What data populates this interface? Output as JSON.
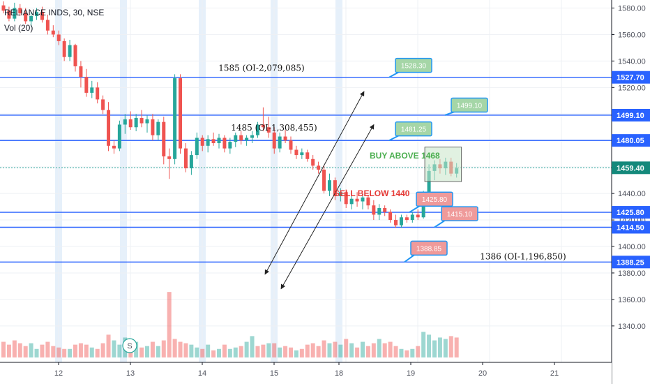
{
  "header": {
    "symbol_line": "RELIANCE INDS, 30, NSE",
    "volume_label": "Vol (20)"
  },
  "colors": {
    "up": "#26a69a",
    "down": "#ef5350",
    "level_line": "#2962ff",
    "current_badge": "#14897b",
    "session_band": "#dbeaf8",
    "callout_green_fill": "#a5d6a7",
    "callout_red_fill": "#ef9a9a",
    "callout_border": "#2196f3"
  },
  "chart_data": {
    "type": "candlestick",
    "x_tick_labels": [
      "12",
      "13",
      "14",
      "15",
      "18",
      "19",
      "20",
      "21"
    ],
    "y_tick_labels": [
      "1340.00",
      "1360.00",
      "1380.00",
      "1400.00",
      "1420.00",
      "1440.00",
      "1460.00",
      "1480.00",
      "1500.00",
      "1520.00",
      "1540.00",
      "1560.00",
      "1580.00"
    ],
    "y_ticks": [
      1340,
      1360,
      1380,
      1400,
      1420,
      1440,
      1460,
      1480,
      1500,
      1520,
      1540,
      1560,
      1580
    ],
    "ylim": [
      1322,
      1585
    ],
    "grid": true,
    "x_scale": {
      "tick_days": [
        12,
        13,
        14,
        15,
        18,
        19,
        20,
        21
      ],
      "bars_per_day": 13
    },
    "candles": [
      {
        "o": 1582,
        "h": 1585,
        "l": 1576,
        "c": 1578
      },
      {
        "o": 1578,
        "h": 1581,
        "l": 1570,
        "c": 1572
      },
      {
        "o": 1572,
        "h": 1584,
        "l": 1570,
        "c": 1580
      },
      {
        "o": 1580,
        "h": 1583,
        "l": 1574,
        "c": 1576
      },
      {
        "o": 1576,
        "h": 1580,
        "l": 1568,
        "c": 1570
      },
      {
        "o": 1570,
        "h": 1577,
        "l": 1566,
        "c": 1574
      },
      {
        "o": 1574,
        "h": 1580,
        "l": 1571,
        "c": 1577
      },
      {
        "o": 1577,
        "h": 1581,
        "l": 1569,
        "c": 1571
      },
      {
        "o": 1571,
        "h": 1575,
        "l": 1560,
        "c": 1563
      },
      {
        "o": 1563,
        "h": 1567,
        "l": 1558,
        "c": 1560
      },
      {
        "o": 1560,
        "h": 1563,
        "l": 1552,
        "c": 1555
      },
      {
        "o": 1555,
        "h": 1557,
        "l": 1540,
        "c": 1543
      },
      {
        "o": 1543,
        "h": 1556,
        "l": 1540,
        "c": 1552
      },
      {
        "o": 1552,
        "h": 1553,
        "l": 1532,
        "c": 1536
      },
      {
        "o": 1536,
        "h": 1540,
        "l": 1520,
        "c": 1528
      },
      {
        "o": 1528,
        "h": 1534,
        "l": 1513,
        "c": 1516
      },
      {
        "o": 1516,
        "h": 1525,
        "l": 1512,
        "c": 1520
      },
      {
        "o": 1520,
        "h": 1524,
        "l": 1508,
        "c": 1511
      },
      {
        "o": 1511,
        "h": 1514,
        "l": 1500,
        "c": 1503
      },
      {
        "o": 1503,
        "h": 1509,
        "l": 1472,
        "c": 1476
      },
      {
        "o": 1476,
        "h": 1480,
        "l": 1470,
        "c": 1474
      },
      {
        "o": 1474,
        "h": 1495,
        "l": 1472,
        "c": 1492
      },
      {
        "o": 1492,
        "h": 1500,
        "l": 1485,
        "c": 1496
      },
      {
        "o": 1496,
        "h": 1502,
        "l": 1488,
        "c": 1490
      },
      {
        "o": 1490,
        "h": 1500,
        "l": 1487,
        "c": 1497
      },
      {
        "o": 1497,
        "h": 1503,
        "l": 1490,
        "c": 1493
      },
      {
        "o": 1493,
        "h": 1499,
        "l": 1486,
        "c": 1496
      },
      {
        "o": 1496,
        "h": 1500,
        "l": 1480,
        "c": 1484
      },
      {
        "o": 1484,
        "h": 1496,
        "l": 1480,
        "c": 1494
      },
      {
        "o": 1494,
        "h": 1498,
        "l": 1462,
        "c": 1468
      },
      {
        "o": 1468,
        "h": 1474,
        "l": 1451,
        "c": 1466
      },
      {
        "o": 1466,
        "h": 1530,
        "l": 1462,
        "c": 1527
      },
      {
        "o": 1527,
        "h": 1530,
        "l": 1470,
        "c": 1474
      },
      {
        "o": 1474,
        "h": 1478,
        "l": 1456,
        "c": 1459
      },
      {
        "o": 1459,
        "h": 1472,
        "l": 1454,
        "c": 1469
      },
      {
        "o": 1469,
        "h": 1486,
        "l": 1466,
        "c": 1482
      },
      {
        "o": 1482,
        "h": 1484,
        "l": 1472,
        "c": 1476
      },
      {
        "o": 1476,
        "h": 1484,
        "l": 1471,
        "c": 1481
      },
      {
        "o": 1481,
        "h": 1486,
        "l": 1476,
        "c": 1478
      },
      {
        "o": 1478,
        "h": 1485,
        "l": 1474,
        "c": 1482
      },
      {
        "o": 1482,
        "h": 1484,
        "l": 1471,
        "c": 1474
      },
      {
        "o": 1474,
        "h": 1482,
        "l": 1470,
        "c": 1479
      },
      {
        "o": 1479,
        "h": 1486,
        "l": 1475,
        "c": 1484
      },
      {
        "o": 1484,
        "h": 1487,
        "l": 1477,
        "c": 1480
      },
      {
        "o": 1480,
        "h": 1484,
        "l": 1476,
        "c": 1482
      },
      {
        "o": 1482,
        "h": 1487,
        "l": 1478,
        "c": 1484
      },
      {
        "o": 1484,
        "h": 1494,
        "l": 1482,
        "c": 1492
      },
      {
        "o": 1492,
        "h": 1505,
        "l": 1487,
        "c": 1490
      },
      {
        "o": 1490,
        "h": 1498,
        "l": 1482,
        "c": 1486
      },
      {
        "o": 1486,
        "h": 1490,
        "l": 1470,
        "c": 1474
      },
      {
        "o": 1474,
        "h": 1486,
        "l": 1471,
        "c": 1483
      },
      {
        "o": 1483,
        "h": 1488,
        "l": 1478,
        "c": 1480
      },
      {
        "o": 1480,
        "h": 1483,
        "l": 1470,
        "c": 1473
      },
      {
        "o": 1473,
        "h": 1476,
        "l": 1466,
        "c": 1469
      },
      {
        "o": 1469,
        "h": 1474,
        "l": 1466,
        "c": 1471
      },
      {
        "o": 1471,
        "h": 1473,
        "l": 1464,
        "c": 1466
      },
      {
        "o": 1466,
        "h": 1469,
        "l": 1458,
        "c": 1461
      },
      {
        "o": 1461,
        "h": 1464,
        "l": 1455,
        "c": 1458
      },
      {
        "o": 1458,
        "h": 1461,
        "l": 1440,
        "c": 1442
      },
      {
        "o": 1442,
        "h": 1455,
        "l": 1438,
        "c": 1450
      },
      {
        "o": 1450,
        "h": 1452,
        "l": 1435,
        "c": 1438
      },
      {
        "o": 1438,
        "h": 1444,
        "l": 1434,
        "c": 1441
      },
      {
        "o": 1441,
        "h": 1443,
        "l": 1429,
        "c": 1432
      },
      {
        "o": 1432,
        "h": 1438,
        "l": 1428,
        "c": 1436
      },
      {
        "o": 1436,
        "h": 1441,
        "l": 1430,
        "c": 1434
      },
      {
        "o": 1434,
        "h": 1440,
        "l": 1428,
        "c": 1437
      },
      {
        "o": 1437,
        "h": 1439,
        "l": 1428,
        "c": 1431
      },
      {
        "o": 1431,
        "h": 1435,
        "l": 1420,
        "c": 1424
      },
      {
        "o": 1424,
        "h": 1432,
        "l": 1420,
        "c": 1429
      },
      {
        "o": 1429,
        "h": 1431,
        "l": 1423,
        "c": 1426
      },
      {
        "o": 1426,
        "h": 1428,
        "l": 1418,
        "c": 1420
      },
      {
        "o": 1420,
        "h": 1424,
        "l": 1414,
        "c": 1416
      },
      {
        "o": 1416,
        "h": 1424,
        "l": 1414,
        "c": 1422
      },
      {
        "o": 1422,
        "h": 1424,
        "l": 1418,
        "c": 1420
      },
      {
        "o": 1420,
        "h": 1426,
        "l": 1418,
        "c": 1424
      },
      {
        "o": 1424,
        "h": 1428,
        "l": 1420,
        "c": 1422
      },
      {
        "o": 1422,
        "h": 1442,
        "l": 1421,
        "c": 1440
      },
      {
        "o": 1440,
        "h": 1462,
        "l": 1438,
        "c": 1457
      },
      {
        "o": 1457,
        "h": 1465,
        "l": 1450,
        "c": 1462
      },
      {
        "o": 1462,
        "h": 1466,
        "l": 1455,
        "c": 1459
      },
      {
        "o": 1459,
        "h": 1467,
        "l": 1454,
        "c": 1464
      },
      {
        "o": 1464,
        "h": 1467,
        "l": 1453,
        "c": 1455
      },
      {
        "o": 1455,
        "h": 1463,
        "l": 1452,
        "c": 1459
      }
    ],
    "volumes": [
      {
        "v": 22,
        "up": false
      },
      {
        "v": 18,
        "up": false
      },
      {
        "v": 24,
        "up": false
      },
      {
        "v": 20,
        "up": false
      },
      {
        "v": 16,
        "up": false
      },
      {
        "v": 20,
        "up": true
      },
      {
        "v": 12,
        "up": true
      },
      {
        "v": 18,
        "up": false
      },
      {
        "v": 22,
        "up": false
      },
      {
        "v": 16,
        "up": false
      },
      {
        "v": 14,
        "up": false
      },
      {
        "v": 12,
        "up": false
      },
      {
        "v": 12,
        "up": true
      },
      {
        "v": 18,
        "up": false
      },
      {
        "v": 20,
        "up": false
      },
      {
        "v": 18,
        "up": false
      },
      {
        "v": 14,
        "up": true
      },
      {
        "v": 12,
        "up": false
      },
      {
        "v": 20,
        "up": false
      },
      {
        "v": 32,
        "up": false
      },
      {
        "v": 24,
        "up": true
      },
      {
        "v": 18,
        "up": true
      },
      {
        "v": 28,
        "up": true
      },
      {
        "v": 20,
        "up": false
      },
      {
        "v": 22,
        "up": true
      },
      {
        "v": 14,
        "up": false
      },
      {
        "v": 16,
        "up": true
      },
      {
        "v": 22,
        "up": false
      },
      {
        "v": 16,
        "up": true
      },
      {
        "v": 24,
        "up": false
      },
      {
        "v": 92,
        "up": false
      },
      {
        "v": 26,
        "up": false
      },
      {
        "v": 22,
        "up": false
      },
      {
        "v": 20,
        "up": false
      },
      {
        "v": 18,
        "up": true
      },
      {
        "v": 14,
        "up": true
      },
      {
        "v": 12,
        "up": false
      },
      {
        "v": 18,
        "up": true
      },
      {
        "v": 10,
        "up": false
      },
      {
        "v": 12,
        "up": true
      },
      {
        "v": 18,
        "up": false
      },
      {
        "v": 12,
        "up": true
      },
      {
        "v": 14,
        "up": true
      },
      {
        "v": 16,
        "up": false
      },
      {
        "v": 22,
        "up": true
      },
      {
        "v": 30,
        "up": true
      },
      {
        "v": 16,
        "up": false
      },
      {
        "v": 18,
        "up": false
      },
      {
        "v": 20,
        "up": true
      },
      {
        "v": 20,
        "up": false
      },
      {
        "v": 14,
        "up": true
      },
      {
        "v": 16,
        "up": false
      },
      {
        "v": 14,
        "up": false
      },
      {
        "v": 10,
        "up": true
      },
      {
        "v": 12,
        "up": false
      },
      {
        "v": 18,
        "up": false
      },
      {
        "v": 20,
        "up": false
      },
      {
        "v": 16,
        "up": false
      },
      {
        "v": 24,
        "up": false
      },
      {
        "v": 20,
        "up": true
      },
      {
        "v": 22,
        "up": false
      },
      {
        "v": 18,
        "up": true
      },
      {
        "v": 26,
        "up": false
      },
      {
        "v": 20,
        "up": true
      },
      {
        "v": 14,
        "up": false
      },
      {
        "v": 22,
        "up": true
      },
      {
        "v": 16,
        "up": false
      },
      {
        "v": 20,
        "up": false
      },
      {
        "v": 26,
        "up": true
      },
      {
        "v": 20,
        "up": false
      },
      {
        "v": 22,
        "up": false
      },
      {
        "v": 16,
        "up": false
      },
      {
        "v": 12,
        "up": true
      },
      {
        "v": 10,
        "up": false
      },
      {
        "v": 12,
        "up": true
      },
      {
        "v": 16,
        "up": false
      },
      {
        "v": 36,
        "up": true
      },
      {
        "v": 32,
        "up": true
      },
      {
        "v": 24,
        "up": true
      },
      {
        "v": 28,
        "up": true
      },
      {
        "v": 26,
        "up": true
      },
      {
        "v": 30,
        "up": false
      },
      {
        "v": 28,
        "up": false
      }
    ],
    "levels": [
      {
        "price": 1527.7,
        "label": "1527.70",
        "left_note": "1585 (OI-2,079,085)"
      },
      {
        "price": 1499.1,
        "label": "1499.10",
        "left_note": ""
      },
      {
        "price": 1480.05,
        "label": "1480.05",
        "left_note": "1485 (OI-1,308,455)"
      },
      {
        "price": 1425.8,
        "label": "1425.80",
        "left_note": ""
      },
      {
        "price": 1414.5,
        "label": "1414.50",
        "left_note": ""
      },
      {
        "price": 1388.25,
        "label": "1388.25",
        "left_note": "1386 (OI-1,196,850)"
      }
    ],
    "current_price": {
      "value": 1459.4,
      "label": "1459.40"
    },
    "signals": {
      "buy": "BUY ABOVE 1468",
      "sell": "SELL BELOW 1440"
    },
    "callouts": [
      {
        "text": "1528.30",
        "tone": "green"
      },
      {
        "text": "1499.10",
        "tone": "green"
      },
      {
        "text": "1481.25",
        "tone": "green"
      },
      {
        "text": "1425.80",
        "tone": "red"
      },
      {
        "text": "1415.10",
        "tone": "red"
      },
      {
        "text": "1388.85",
        "tone": "red"
      }
    ],
    "marker": "S"
  }
}
